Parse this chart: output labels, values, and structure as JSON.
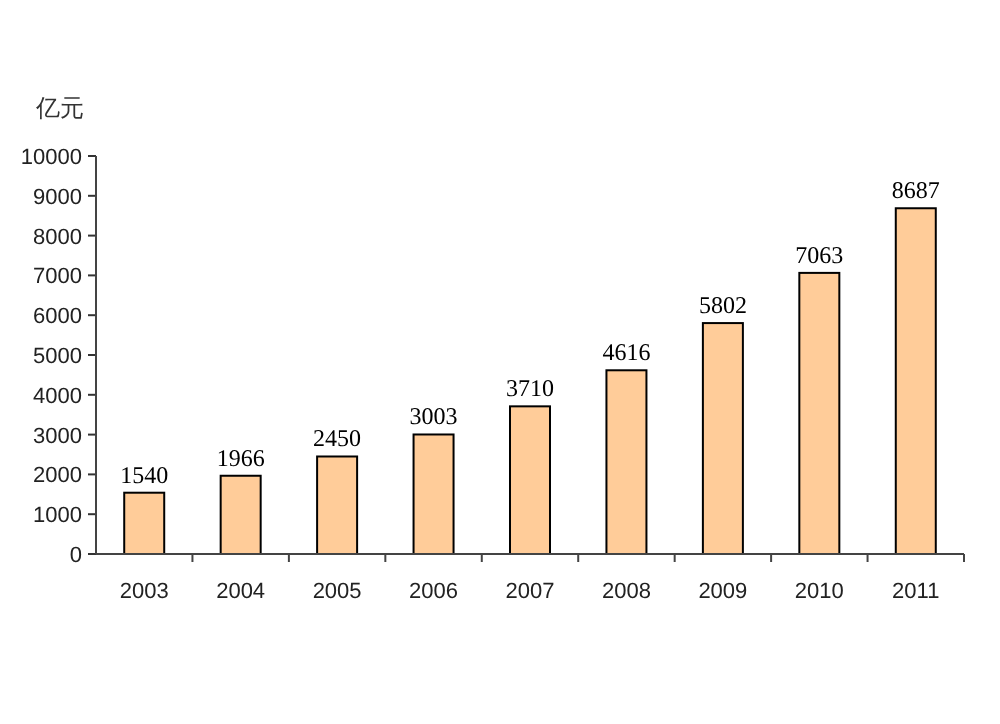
{
  "chart_data": {
    "type": "bar",
    "ylabel": "亿元",
    "categories": [
      "2003",
      "2004",
      "2005",
      "2006",
      "2007",
      "2008",
      "2009",
      "2010",
      "2011"
    ],
    "values": [
      1540,
      1966,
      2450,
      3003,
      3710,
      4616,
      5802,
      7063,
      8687
    ],
    "color": "#ffcc99",
    "ylim": [
      0,
      10000
    ],
    "yticks": [
      0,
      1000,
      2000,
      3000,
      4000,
      5000,
      6000,
      7000,
      8000,
      9000,
      10000
    ],
    "data_labels": true
  }
}
